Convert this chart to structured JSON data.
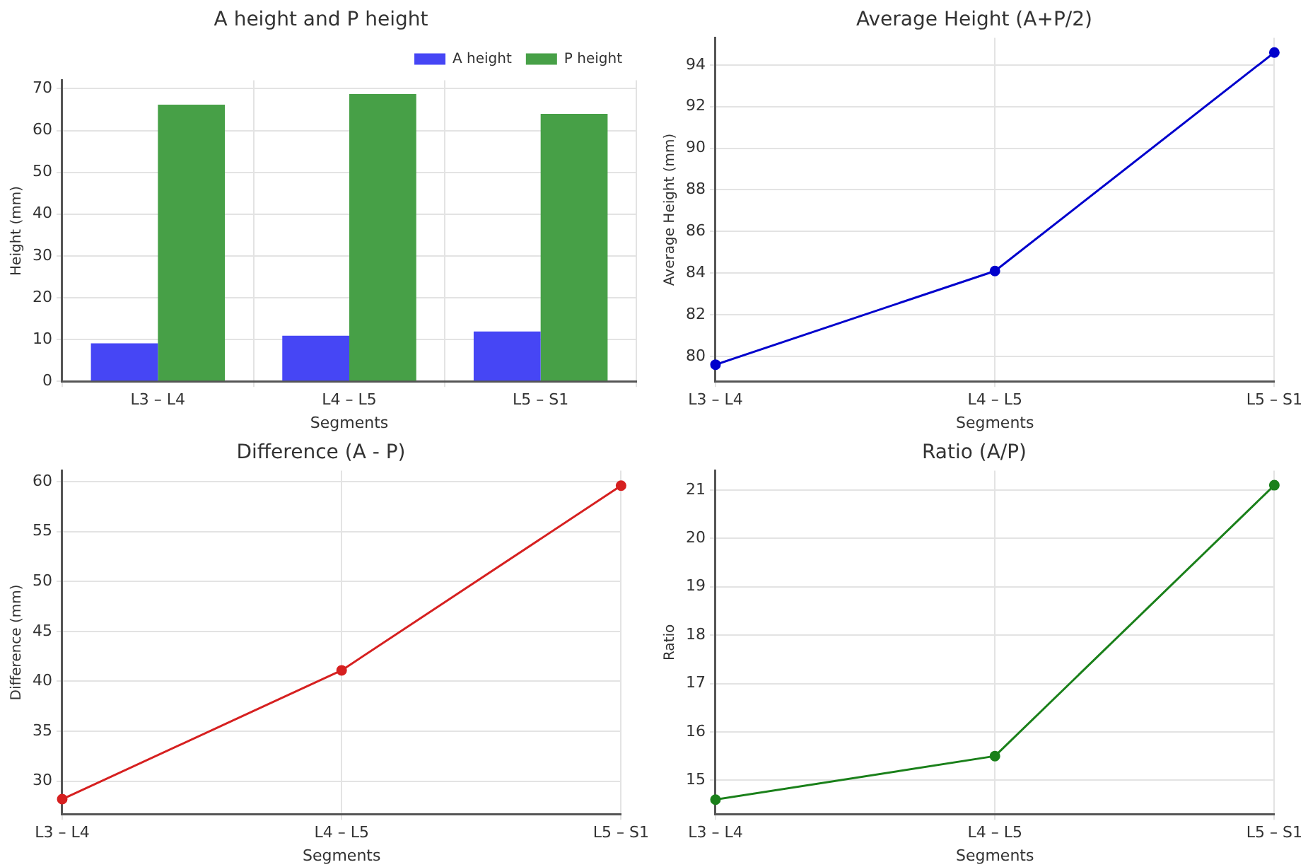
{
  "chart_data": [
    {
      "type": "bar",
      "title": "A height and P height",
      "xlabel": "Segments",
      "ylabel": "Height (mm)",
      "categories": [
        "L3 – L4",
        "L4 – L5",
        "L5 – S1"
      ],
      "series": [
        {
          "name": "A height",
          "color": "#4646f5",
          "values": [
            9.1,
            10.9,
            11.9
          ]
        },
        {
          "name": "P height",
          "color": "#47a047",
          "values": [
            66.2,
            68.7,
            64
          ]
        }
      ],
      "ylim": [
        0,
        72
      ],
      "yticks": [
        0,
        10,
        20,
        30,
        40,
        50,
        60,
        70
      ],
      "grid": true,
      "legend": "top right"
    },
    {
      "type": "line",
      "title": "Average Height (A+P/2)",
      "xlabel": "Segments",
      "ylabel": "Average Height (mm)",
      "categories": [
        "L3 – L4",
        "L4 – L5",
        "L5 – S1"
      ],
      "series": [
        {
          "color": "#0000cc",
          "values": [
            79.6,
            84.1,
            94.6
          ]
        }
      ],
      "ylim": [
        78.8,
        95.3
      ],
      "yticks": [
        80,
        82,
        84,
        86,
        88,
        90,
        92,
        94
      ],
      "grid": true,
      "marker": "circle",
      "line_style": "solid"
    },
    {
      "type": "line",
      "title": "Difference (A - P)",
      "xlabel": "Segments",
      "ylabel": "Difference (mm)",
      "categories": [
        "L3 – L4",
        "L4 – L5",
        "L5 – S1"
      ],
      "series": [
        {
          "color": "#d62020",
          "values": [
            28.2,
            41.1,
            59.6
          ]
        }
      ],
      "ylim": [
        26.7,
        61.1
      ],
      "yticks": [
        30,
        35,
        40,
        45,
        50,
        55,
        60
      ],
      "grid": true,
      "marker": "circle",
      "line_style": "solid"
    },
    {
      "type": "line",
      "title": "Ratio (A/P)",
      "xlabel": "Segments",
      "ylabel": "Ratio",
      "categories": [
        "L3 – L4",
        "L4 – L5",
        "L5 – S1"
      ],
      "series": [
        {
          "color": "#1a801a",
          "values": [
            14.6,
            15.5,
            21.1
          ]
        }
      ],
      "ylim": [
        14.3,
        21.4
      ],
      "yticks": [
        15,
        16,
        17,
        18,
        19,
        20,
        21
      ],
      "grid": true,
      "marker": "circle",
      "line_style": "solid"
    }
  ]
}
